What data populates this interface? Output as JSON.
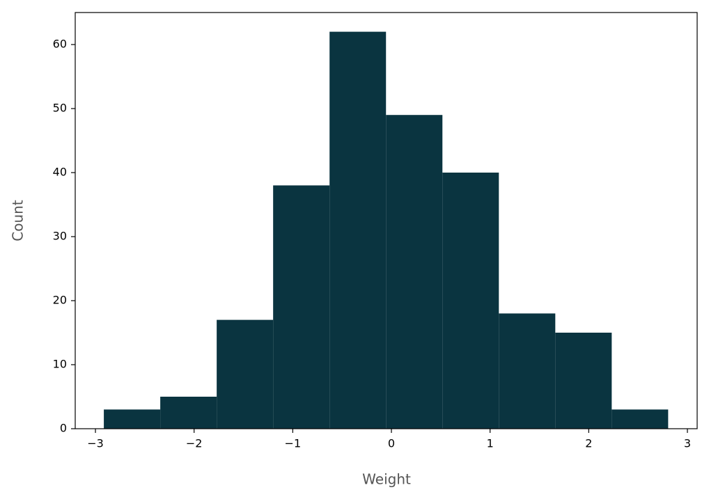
{
  "chart_data": {
    "type": "histogram",
    "x_label": "Weight",
    "y_label": "Count",
    "bins": [
      -2.915,
      -2.343,
      -1.771,
      -1.199,
      -0.627,
      -0.055,
      0.517,
      1.089,
      1.661,
      2.233,
      2.805
    ],
    "values": [
      3,
      5,
      17,
      38,
      62,
      49,
      40,
      18,
      15,
      3
    ],
    "color": "#0a3440",
    "xlim": [
      -3.205,
      3.099
    ],
    "xticks": [
      {
        "value": -3,
        "label": "−3"
      },
      {
        "value": -2,
        "label": "−2"
      },
      {
        "value": -1,
        "label": "−1"
      },
      0,
      1,
      2,
      3
    ],
    "ylim": [
      0,
      65
    ],
    "yticks": [
      0,
      10,
      20,
      30,
      40,
      50,
      60
    ],
    "grid": false
  }
}
